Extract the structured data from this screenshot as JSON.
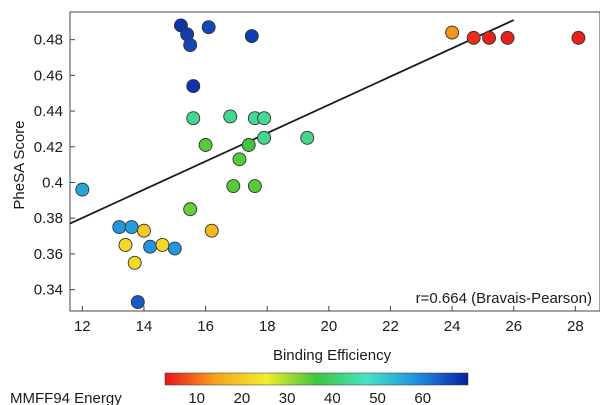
{
  "chart_data": {
    "type": "scatter",
    "xlabel": "Binding Efficiency",
    "ylabel": "PheSA Score",
    "xlim": [
      11.6,
      28.8
    ],
    "ylim": [
      0.328,
      0.4955
    ],
    "x_ticks": [
      "12",
      "14",
      "16",
      "18",
      "20",
      "22",
      "24",
      "26",
      "28"
    ],
    "y_ticks": [
      "0.34",
      "0.36",
      "0.38",
      "0.4",
      "0.42",
      "0.44",
      "0.46",
      "0.48"
    ],
    "annotation": "r=0.664 (Bravais-Pearson)",
    "trendline": {
      "x": [
        11.6,
        26.0
      ],
      "y": [
        0.377,
        0.491
      ]
    },
    "grid": false,
    "marker_outline_color": "#333333",
    "colorbar": {
      "label": "MMFF94 Energy",
      "ticks": [
        "10",
        "20",
        "30",
        "40",
        "50",
        "60"
      ],
      "range": [
        3,
        70
      ],
      "colors": [
        "#e8141b",
        "#f7a21b",
        "#f2ef2c",
        "#3ec53b",
        "#48e3c6",
        "#1f8fe0",
        "#0a1fa0"
      ]
    },
    "points": [
      {
        "x": 12.0,
        "y": 0.396,
        "c": 56
      },
      {
        "x": 13.2,
        "y": 0.375,
        "c": 58
      },
      {
        "x": 13.6,
        "y": 0.375,
        "c": 57
      },
      {
        "x": 13.4,
        "y": 0.365,
        "c": 22
      },
      {
        "x": 13.7,
        "y": 0.355,
        "c": 22
      },
      {
        "x": 14.0,
        "y": 0.373,
        "c": 20
      },
      {
        "x": 14.2,
        "y": 0.364,
        "c": 58
      },
      {
        "x": 14.6,
        "y": 0.365,
        "c": 22
      },
      {
        "x": 15.0,
        "y": 0.363,
        "c": 58
      },
      {
        "x": 13.8,
        "y": 0.333,
        "c": 64
      },
      {
        "x": 15.2,
        "y": 0.488,
        "c": 68
      },
      {
        "x": 15.4,
        "y": 0.483,
        "c": 67
      },
      {
        "x": 15.5,
        "y": 0.477,
        "c": 66
      },
      {
        "x": 16.1,
        "y": 0.487,
        "c": 66
      },
      {
        "x": 17.5,
        "y": 0.482,
        "c": 67
      },
      {
        "x": 15.6,
        "y": 0.454,
        "c": 68
      },
      {
        "x": 15.6,
        "y": 0.436,
        "c": 43
      },
      {
        "x": 16.8,
        "y": 0.437,
        "c": 43
      },
      {
        "x": 17.6,
        "y": 0.436,
        "c": 44
      },
      {
        "x": 17.9,
        "y": 0.436,
        "c": 44
      },
      {
        "x": 16.0,
        "y": 0.421,
        "c": 35
      },
      {
        "x": 17.4,
        "y": 0.421,
        "c": 37
      },
      {
        "x": 17.9,
        "y": 0.425,
        "c": 43
      },
      {
        "x": 19.3,
        "y": 0.425,
        "c": 43
      },
      {
        "x": 17.1,
        "y": 0.413,
        "c": 35
      },
      {
        "x": 16.9,
        "y": 0.398,
        "c": 35
      },
      {
        "x": 17.6,
        "y": 0.398,
        "c": 35
      },
      {
        "x": 15.5,
        "y": 0.385,
        "c": 34
      },
      {
        "x": 16.2,
        "y": 0.373,
        "c": 17
      },
      {
        "x": 24.0,
        "y": 0.484,
        "c": 13
      },
      {
        "x": 24.7,
        "y": 0.481,
        "c": 5
      },
      {
        "x": 25.2,
        "y": 0.481,
        "c": 4
      },
      {
        "x": 25.8,
        "y": 0.481,
        "c": 4
      },
      {
        "x": 28.1,
        "y": 0.481,
        "c": 4
      }
    ]
  }
}
